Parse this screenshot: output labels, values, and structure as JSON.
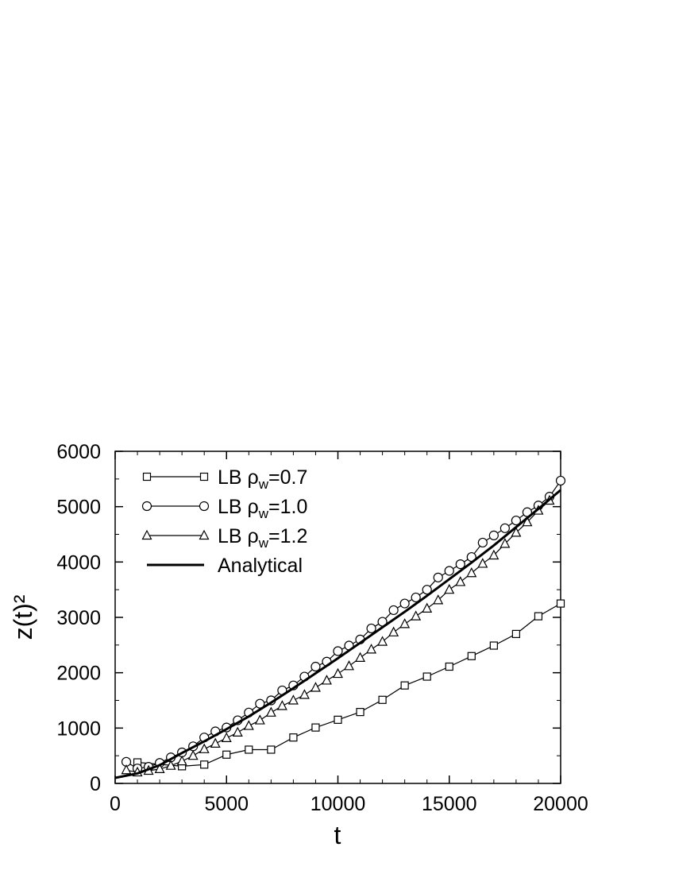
{
  "chart_data": {
    "type": "line",
    "title": "",
    "xlabel": "t",
    "ylabel": "z(t)²",
    "xlim": [
      0,
      20000
    ],
    "ylim": [
      0,
      6000
    ],
    "xticks": [
      0,
      5000,
      10000,
      15000,
      20000
    ],
    "yticks": [
      0,
      1000,
      2000,
      3000,
      4000,
      5000,
      6000
    ],
    "x_minor_step": 1000,
    "y_minor_step": 500,
    "grid": false,
    "legend_position": "top-left",
    "series": [
      {
        "name": "LB ρw=0.7",
        "name_parts": {
          "prefix": "LB ρ",
          "sub": "w",
          "suffix": "=0.7"
        },
        "marker": "square",
        "x": [
          1000,
          3000,
          4000,
          5000,
          6000,
          7000,
          8000,
          9000,
          10000,
          11000,
          12000,
          13000,
          14000,
          15000,
          16000,
          17000,
          18000,
          19000,
          20000
        ],
        "y": [
          380,
          310,
          340,
          520,
          610,
          610,
          830,
          1010,
          1150,
          1290,
          1510,
          1770,
          1930,
          2110,
          2300,
          2490,
          2700,
          3020,
          3250
        ]
      },
      {
        "name": "LB ρw=1.0",
        "name_parts": {
          "prefix": "LB ρ",
          "sub": "w",
          "suffix": "=1.0"
        },
        "marker": "circle",
        "x": [
          500,
          1000,
          1500,
          2000,
          2500,
          3000,
          3500,
          4000,
          4500,
          5000,
          5500,
          6000,
          6500,
          7000,
          7500,
          8000,
          8500,
          9000,
          9500,
          10000,
          10500,
          11000,
          11500,
          12000,
          12500,
          13000,
          13500,
          14000,
          14500,
          15000,
          15500,
          16000,
          16500,
          17000,
          17500,
          18000,
          18500,
          19000,
          19500,
          20000
        ],
        "y": [
          390,
          270,
          300,
          370,
          470,
          560,
          670,
          830,
          940,
          1010,
          1140,
          1280,
          1440,
          1500,
          1680,
          1770,
          1930,
          2110,
          2200,
          2390,
          2490,
          2600,
          2800,
          2920,
          3130,
          3250,
          3360,
          3500,
          3720,
          3840,
          3960,
          4090,
          4350,
          4480,
          4610,
          4750,
          4900,
          5020,
          5180,
          5470
        ]
      },
      {
        "name": "LB ρw=1.2",
        "name_parts": {
          "prefix": "LB ρ",
          "sub": "w",
          "suffix": "=1.2"
        },
        "marker": "triangle",
        "x": [
          500,
          1000,
          1500,
          2000,
          2500,
          3000,
          3500,
          4000,
          4500,
          5000,
          5500,
          6000,
          6500,
          7000,
          7500,
          8000,
          8500,
          9000,
          9500,
          10000,
          10500,
          11000,
          11500,
          12000,
          12500,
          13000,
          13500,
          14000,
          14500,
          15000,
          15500,
          16000,
          16500,
          17000,
          17500,
          18000,
          18500,
          19000,
          19500
        ],
        "y": [
          240,
          200,
          230,
          260,
          320,
          400,
          500,
          620,
          720,
          820,
          920,
          1040,
          1140,
          1280,
          1400,
          1500,
          1600,
          1730,
          1860,
          1980,
          2120,
          2270,
          2420,
          2560,
          2730,
          2880,
          3020,
          3160,
          3310,
          3500,
          3640,
          3800,
          3970,
          4120,
          4330,
          4530,
          4720,
          4930,
          5110
        ]
      },
      {
        "name": "Analytical",
        "marker": "none",
        "style": "thick-line",
        "x": [
          0,
          1000,
          2000,
          3000,
          4000,
          5000,
          6000,
          7000,
          8000,
          9000,
          10000,
          11000,
          12000,
          13000,
          14000,
          15000,
          16000,
          17000,
          18000,
          19000,
          20000
        ],
        "y": [
          100,
          180,
          330,
          550,
          760,
          980,
          1210,
          1460,
          1720,
          1990,
          2260,
          2540,
          2820,
          3100,
          3390,
          3690,
          3990,
          4300,
          4630,
          4960,
          5300
        ]
      }
    ]
  }
}
